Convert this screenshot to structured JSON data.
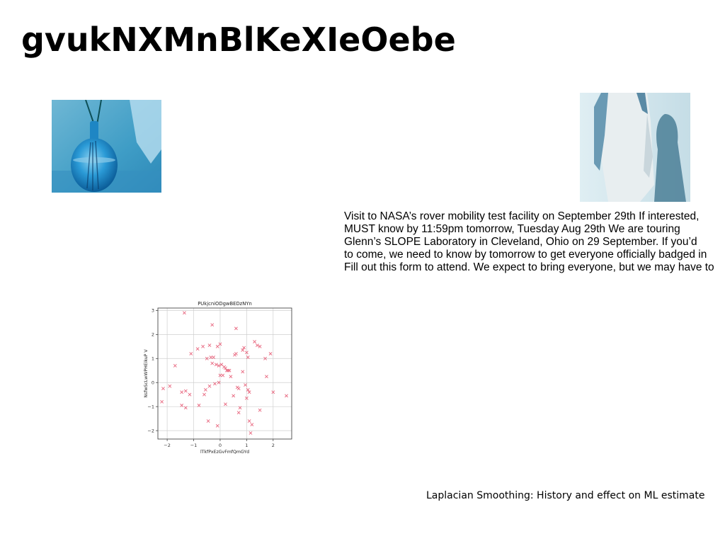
{
  "slide": {
    "title": "gvukNXMnBlKeXIeOebe",
    "body_lines": [
      "Visit to NASA’s rover mobility test facility on September 29th If interested,",
      "MUST know by 11:59pm tomorrow, Tuesday Aug 29th We are touring",
      "Glenn’s SLOPE Laboratory in Cleveland, Ohio on 29 September. If you’d",
      "to come, we need to know by tomorrow to get everyone officially badged in",
      "Fill out this form to attend. We expect to bring everyone, but we may have to"
    ],
    "footer": "Laplacian Smoothing: History and effect on ML estimate"
  },
  "images": {
    "left": {
      "icon": "vase-photo-icon"
    },
    "right": {
      "icon": "person-photo-icon"
    }
  },
  "colors": {
    "marker": "#e8677f",
    "grid": "#cfcfcf",
    "axis": "#333333"
  },
  "chart_data": {
    "type": "scatter",
    "title": "PUkjcniODgwBEDzNYn",
    "xlabel": "lTkfPxEzGvFmfQmGYd",
    "ylabel": "NsfwScLwWPHEikuP V",
    "xlim": [
      -2.35,
      2.7
    ],
    "ylim": [
      -2.35,
      3.1
    ],
    "xticks": [
      -2,
      -1,
      0,
      1,
      2
    ],
    "yticks": [
      -2,
      -1,
      0,
      1,
      2,
      3
    ],
    "marker": "x",
    "grid": true,
    "x": [
      -1.35,
      -0.3,
      0.6,
      -1.7,
      -0.4,
      -0.65,
      -0.85,
      -1.1,
      -0.1,
      0.0,
      -0.35,
      -0.5,
      -0.25,
      0.2,
      0.25,
      0.15,
      0.9,
      1.0,
      0.85,
      1.3,
      1.5,
      1.4,
      1.7,
      1.9,
      0.55,
      0.6,
      -0.3,
      -0.15,
      -0.05,
      0.05,
      0.3,
      0.35,
      0.85,
      1.05,
      -2.15,
      -1.9,
      -1.45,
      -1.3,
      -1.15,
      -0.55,
      -0.6,
      -0.4,
      -0.2,
      -0.05,
      0.0,
      0.4,
      0.7,
      0.95,
      1.05,
      1.1,
      2.0,
      2.5,
      -1.45,
      -1.3,
      -0.8,
      -0.45,
      0.2,
      0.5,
      0.75,
      0.7,
      1.0,
      1.5,
      1.1,
      1.2,
      1.15,
      -2.2,
      -0.1,
      0.65,
      1.75,
      0.1
    ],
    "y": [
      2.9,
      2.4,
      2.25,
      0.7,
      1.55,
      1.5,
      1.4,
      1.2,
      1.5,
      1.6,
      1.05,
      1.0,
      1.05,
      0.6,
      0.5,
      0.65,
      1.45,
      1.25,
      1.35,
      1.7,
      1.5,
      1.55,
      1.0,
      1.2,
      1.15,
      1.2,
      0.8,
      0.75,
      0.7,
      0.75,
      0.5,
      0.5,
      0.45,
      1.05,
      -0.25,
      -0.15,
      -0.4,
      -0.35,
      -0.5,
      -0.3,
      -0.5,
      -0.15,
      -0.05,
      0.0,
      0.3,
      0.25,
      -0.25,
      -0.1,
      -0.3,
      -0.4,
      -0.4,
      -0.55,
      -0.95,
      -1.05,
      -0.95,
      -1.6,
      -0.9,
      -0.55,
      -1.05,
      -1.25,
      -0.65,
      -1.15,
      -1.6,
      -1.75,
      -2.1,
      -0.8,
      -1.8,
      -0.2,
      0.25,
      0.3
    ]
  }
}
